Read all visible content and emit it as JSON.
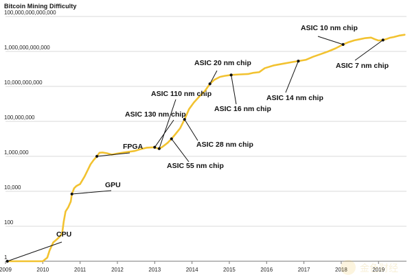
{
  "chart_data": {
    "type": "line",
    "title": "Bitcoin Mining Difficulty",
    "xlabel": "",
    "ylabel": "",
    "xlim": [
      2009.0,
      2019.75
    ],
    "ylim": [
      1,
      100000000000000
    ],
    "y_scale": "log",
    "grid": true,
    "legend": "none",
    "colors": {
      "line": "#f2c230",
      "marker": "#111111",
      "grid": "#d8d8d8",
      "axis": "#777777"
    },
    "x_ticks": [
      {
        "value": 2009,
        "label": "2009"
      },
      {
        "value": 2010,
        "label": "2010"
      },
      {
        "value": 2011,
        "label": "2011"
      },
      {
        "value": 2012,
        "label": "2012"
      },
      {
        "value": 2013,
        "label": "2013"
      },
      {
        "value": 2014,
        "label": "2014"
      },
      {
        "value": 2015,
        "label": "2015"
      },
      {
        "value": 2016,
        "label": "2016"
      },
      {
        "value": 2017,
        "label": "2017"
      },
      {
        "value": 2018,
        "label": "2018"
      },
      {
        "value": 2019,
        "label": "2019"
      }
    ],
    "y_ticks": [
      {
        "value": 1,
        "label": "1"
      },
      {
        "value": 100,
        "label": "100"
      },
      {
        "value": 10000,
        "label": "10,000"
      },
      {
        "value": 1000000,
        "label": "1,000,000"
      },
      {
        "value": 100000000,
        "label": "100,000,000"
      },
      {
        "value": 10000000000,
        "label": "10,000,000,000"
      },
      {
        "value": 1000000000000,
        "label": "1,000,000,000,000"
      },
      {
        "value": 100000000000000,
        "label": "100,000,000,000,000"
      }
    ],
    "series": [
      {
        "points": [
          [
            2009.05,
            1
          ],
          [
            2009.25,
            1
          ],
          [
            2009.5,
            1
          ],
          [
            2009.75,
            1
          ],
          [
            2010.0,
            1
          ],
          [
            2010.12,
            1.6
          ],
          [
            2010.18,
            4
          ],
          [
            2010.28,
            12
          ],
          [
            2010.38,
            18
          ],
          [
            2010.45,
            25
          ],
          [
            2010.52,
            40
          ],
          [
            2010.56,
            180
          ],
          [
            2010.61,
            700
          ],
          [
            2010.68,
            1200
          ],
          [
            2010.75,
            2600
          ],
          [
            2010.78,
            7000
          ],
          [
            2010.84,
            15000
          ],
          [
            2010.9,
            20000
          ],
          [
            2011.0,
            26000
          ],
          [
            2011.12,
            70000
          ],
          [
            2011.28,
            350000
          ],
          [
            2011.36,
            600000
          ],
          [
            2011.45,
            1000000
          ],
          [
            2011.52,
            1600000
          ],
          [
            2011.6,
            1650000
          ],
          [
            2011.72,
            1500000
          ],
          [
            2011.85,
            1250000
          ],
          [
            2012.0,
            1450000
          ],
          [
            2012.2,
            1700000
          ],
          [
            2012.45,
            2000000
          ],
          [
            2012.6,
            2500000
          ],
          [
            2012.78,
            3100000
          ],
          [
            2012.98,
            3300000
          ],
          [
            2013.05,
            2950000
          ],
          [
            2013.12,
            2750000
          ],
          [
            2013.2,
            3400000
          ],
          [
            2013.35,
            6000000
          ],
          [
            2013.45,
            10000000
          ],
          [
            2013.55,
            18000000
          ],
          [
            2013.68,
            40000000
          ],
          [
            2013.8,
            130000000
          ],
          [
            2013.92,
            500000000
          ],
          [
            2014.05,
            1200000000
          ],
          [
            2014.2,
            2700000000
          ],
          [
            2014.35,
            5600000000
          ],
          [
            2014.48,
            14000000000
          ],
          [
            2014.6,
            24000000000
          ],
          [
            2014.75,
            35000000000
          ],
          [
            2014.88,
            40000000000
          ],
          [
            2015.05,
            45000000000
          ],
          [
            2015.25,
            48000000000
          ],
          [
            2015.5,
            51000000000
          ],
          [
            2015.65,
            60000000000
          ],
          [
            2015.8,
            65000000000
          ],
          [
            2015.95,
            110000000000
          ],
          [
            2016.2,
            160000000000
          ],
          [
            2016.45,
            200000000000
          ],
          [
            2016.7,
            250000000000
          ],
          [
            2016.85,
            280000000000
          ],
          [
            2017.05,
            330000000000
          ],
          [
            2017.25,
            500000000000
          ],
          [
            2017.45,
            700000000000
          ],
          [
            2017.65,
            1000000000000
          ],
          [
            2017.85,
            1500000000000
          ],
          [
            2018.05,
            2500000000000
          ],
          [
            2018.2,
            3400000000000
          ],
          [
            2018.35,
            4300000000000
          ],
          [
            2018.5,
            5000000000000
          ],
          [
            2018.65,
            5800000000000
          ],
          [
            2018.8,
            6200000000000
          ],
          [
            2018.9,
            5000000000000
          ],
          [
            2019.0,
            4200000000000
          ],
          [
            2019.12,
            4500000000000
          ],
          [
            2019.2,
            5000000000000
          ],
          [
            2019.3,
            6000000000000
          ],
          [
            2019.4,
            6600000000000
          ],
          [
            2019.55,
            8000000000000
          ],
          [
            2019.7,
            9000000000000
          ]
        ]
      }
    ],
    "annotations": [
      {
        "label": "CPU",
        "x": 2009.05,
        "y": 1,
        "side": "above"
      },
      {
        "label": "GPU",
        "x": 2010.78,
        "y": 7000,
        "side": "above"
      },
      {
        "label": "FPGA",
        "x": 2011.45,
        "y": 1000000,
        "side": "above"
      },
      {
        "label": "ASIC 130 nm chip",
        "x": 2013.0,
        "y": 3300000,
        "side": "above"
      },
      {
        "label": "ASIC 110 nm chip",
        "x": 2013.12,
        "y": 2750000,
        "side": "above"
      },
      {
        "label": "ASIC 55 nm chip",
        "x": 2013.45,
        "y": 10000000,
        "side": "below"
      },
      {
        "label": "ASIC 28 nm chip",
        "x": 2013.8,
        "y": 130000000,
        "side": "below"
      },
      {
        "label": "ASIC 20 nm chip",
        "x": 2014.48,
        "y": 14000000000,
        "side": "above"
      },
      {
        "label": "ASIC 16 nm chip",
        "x": 2015.05,
        "y": 45000000000,
        "side": "below"
      },
      {
        "label": "ASIC 14 nm chip",
        "x": 2016.85,
        "y": 280000000000,
        "side": "below"
      },
      {
        "label": "ASIC 10 nm chip",
        "x": 2018.05,
        "y": 2500000000000,
        "side": "above"
      },
      {
        "label": "ASIC 7 nm chip",
        "x": 2019.12,
        "y": 4500000000000,
        "side": "below"
      }
    ]
  },
  "watermark": {
    "text": "金色财经"
  }
}
